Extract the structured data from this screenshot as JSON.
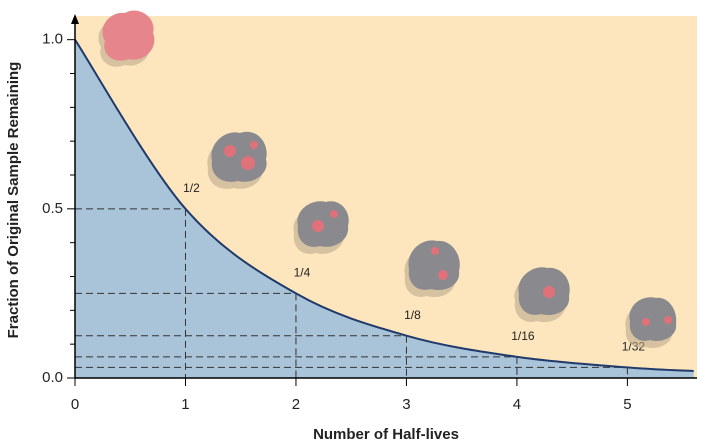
{
  "chart_data": {
    "type": "line",
    "x_label": "Number of Half-lives",
    "y_label": "Fraction of Original Sample Remaining",
    "x": [
      0,
      1,
      2,
      3,
      4,
      5,
      5.6
    ],
    "values": [
      1,
      0.5,
      0.25,
      0.125,
      0.0625,
      0.03125,
      0.0206
    ],
    "value_labels": [
      null,
      "1/2",
      "1/4",
      "1/8",
      "1/16",
      "1/32",
      null
    ],
    "color": "#1f3a6b",
    "area_color": "#a9c4d8",
    "background_color": "#fde6bd",
    "xlim": [
      0,
      5.63
    ],
    "ylim": [
      0,
      1.07
    ],
    "xticks": [
      0,
      1,
      2,
      3,
      4,
      5
    ],
    "yticks": [
      {
        "value": 0,
        "label": "0.0"
      },
      {
        "value": 0.5,
        "label": "0.5"
      },
      {
        "value": 1,
        "label": "1.0"
      }
    ],
    "yminorticks": [
      0.1,
      0.2,
      0.3,
      0.4,
      0.6,
      0.7,
      0.8,
      0.9
    ]
  }
}
